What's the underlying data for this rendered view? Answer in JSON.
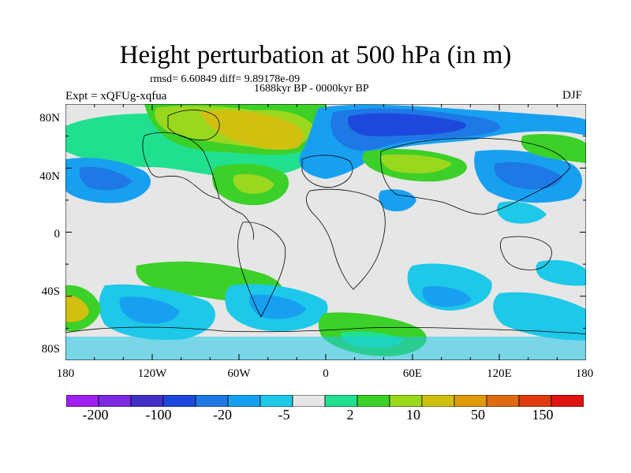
{
  "title": "Height perturbation at 500 hPa (in m)",
  "stats": "rmsd= 6.60849 diff= 9.89178e-09",
  "period": "1688kyr BP - 0000kyr BP",
  "expt": "Expt = xQFUg-xqfua",
  "season": "DJF",
  "lat_ticks": [
    "80N",
    "40N",
    "0",
    "40S",
    "80S"
  ],
  "lon_ticks": [
    "180",
    "120W",
    "60W",
    "0",
    "60E",
    "120E",
    "180"
  ],
  "colorbar": {
    "colors": [
      "#a020f0",
      "#7a2ae0",
      "#4030c8",
      "#1e48dc",
      "#1e78e6",
      "#18a0f0",
      "#1ec8e8",
      "#e6e6e6",
      "#20e090",
      "#3cd028",
      "#9ad820",
      "#d2c010",
      "#e09c08",
      "#e06a10",
      "#e03a10",
      "#e01410"
    ],
    "labels": [
      "-200",
      "-100",
      "-20",
      "-5",
      "2",
      "10",
      "50",
      "150"
    ]
  },
  "map_colors": {
    "background": "#e6e6e6",
    "neg_weak": "#1ec8e8",
    "neg_mid": "#18a0f0",
    "neg_strong": "#1e78e6",
    "neg_stronger": "#1e48dc",
    "pos_weak": "#20e090",
    "pos_mid": "#3cd028",
    "pos_strong": "#9ad820",
    "pos_stronger": "#d2c010"
  }
}
